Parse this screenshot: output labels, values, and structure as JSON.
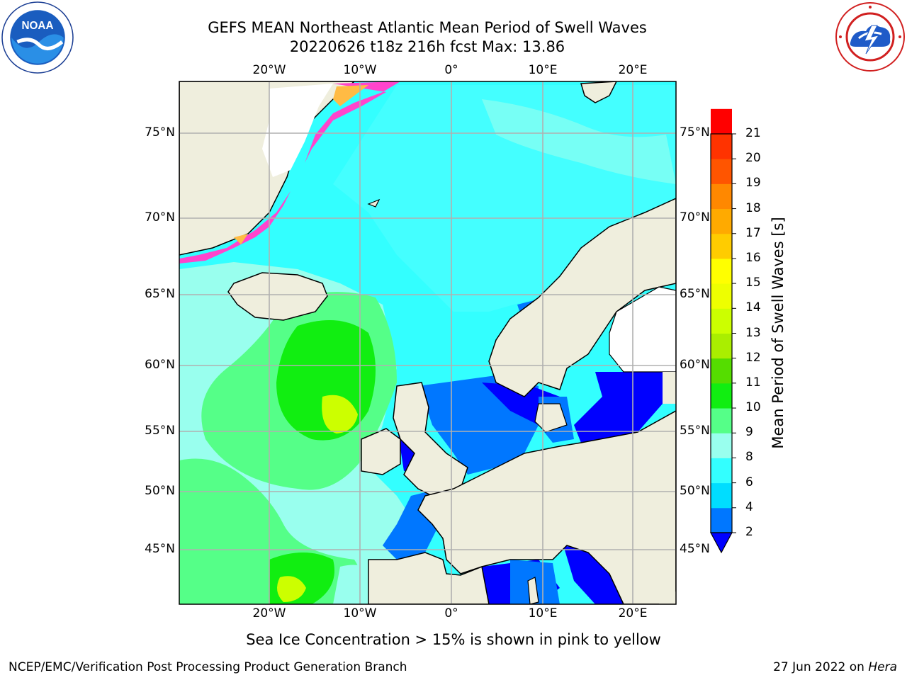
{
  "header": {
    "title": "GEFS MEAN Northeast Atlantic Mean Period of Swell Waves",
    "subtitle": "20220626 t18z 216h fcst   Max: 13.86"
  },
  "logos": {
    "left": {
      "icon": "noaa-logo",
      "text": "NOAA"
    },
    "right": {
      "icon": "nws-logo"
    }
  },
  "map": {
    "lon_labels": [
      "20°W",
      "10°W",
      "0°",
      "10°E",
      "20°E"
    ],
    "lat_labels": [
      "75°N",
      "70°N",
      "65°N",
      "60°N",
      "55°N",
      "50°N",
      "45°N"
    ],
    "colors": {
      "land": "#efeedd",
      "ocean_base": "#33ffff",
      "grid": "#b0b0b0"
    }
  },
  "colorbar": {
    "label": "Mean Period of Swell Waves [s]",
    "ticks": [
      "2",
      "4",
      "6",
      "8",
      "9",
      "10",
      "11",
      "12",
      "13",
      "14",
      "15",
      "16",
      "17",
      "18",
      "19",
      "20",
      "21"
    ],
    "colors": [
      "#0077ff",
      "#00ddff",
      "#33ffff",
      "#99ffee",
      "#55ff88",
      "#11ee11",
      "#55dd00",
      "#aaee00",
      "#ccff00",
      "#eeff00",
      "#ffff00",
      "#ffcc00",
      "#ffaa00",
      "#ff8800",
      "#ff5500",
      "#ff3300",
      "#ff0000"
    ],
    "extend_color": "#0000ff"
  },
  "footer": {
    "caption": "Sea Ice Concentration > 15% is shown in pink to yellow",
    "credit": "NCEP/EMC/Verification Post Processing Product Generation Branch",
    "date": "27 Jun 2022 on",
    "host": "Hera"
  }
}
